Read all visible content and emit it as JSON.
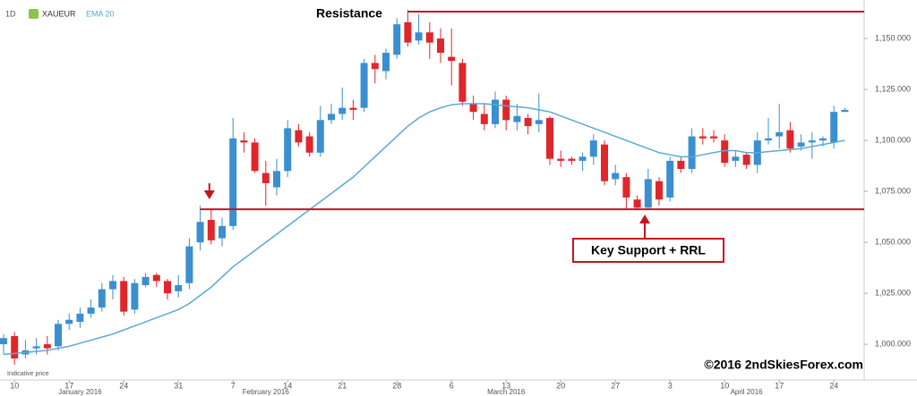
{
  "chart_data": {
    "type": "candlestick",
    "interval": "1D",
    "symbol": "XAUEUR",
    "categories": [
      null,
      "10",
      null,
      null,
      null,
      null,
      "17",
      null,
      null,
      null,
      null,
      "24",
      null,
      null,
      null,
      null,
      "31",
      null,
      null,
      null,
      null,
      "7",
      null,
      null,
      null,
      null,
      "14",
      null,
      null,
      null,
      null,
      "21",
      null,
      null,
      null,
      null,
      "28",
      null,
      null,
      null,
      null,
      "6",
      null,
      null,
      null,
      null,
      "13",
      null,
      null,
      null,
      null,
      "20",
      null,
      null,
      null,
      null,
      "27",
      null,
      null,
      null,
      null,
      "3",
      null,
      null,
      null,
      null,
      "10",
      null,
      null,
      null,
      null,
      "17",
      null,
      null,
      null,
      null,
      "24",
      null
    ],
    "months": [
      "January 2016",
      "February 2016",
      "March 2016",
      "April 2016"
    ],
    "open": [
      1000,
      1004,
      995,
      998,
      1000,
      999,
      1010,
      1011,
      1015,
      1018,
      1027,
      1031,
      1017,
      1029,
      1034,
      1031,
      1026,
      1030,
      1050,
      1061,
      1052,
      1058,
      1100,
      1099,
      1084,
      1077,
      1085,
      1105,
      1102,
      1094,
      1110,
      1113,
      1116,
      1116,
      1138,
      1134,
      1142,
      1158,
      1149,
      1153,
      1150,
      1141,
      1138,
      1118,
      1113,
      1108,
      1120,
      1109,
      1111,
      1108,
      1111,
      1091,
      1091,
      1090,
      1092,
      1098,
      1081,
      1082,
      1071,
      1067,
      1080,
      1072,
      1090,
      1086,
      1102,
      1102,
      1100,
      1090,
      1093,
      1088,
      1100,
      1102,
      1105,
      1097,
      1099,
      1100,
      1099,
      1114
    ],
    "high": [
      1005,
      1006,
      1002,
      1003,
      1004,
      1012,
      1015,
      1018,
      1022,
      1030,
      1034,
      1033,
      1032,
      1035,
      1035,
      1032,
      1034,
      1052,
      1068,
      1066,
      1062,
      1111,
      1104,
      1101,
      1090,
      1091,
      1110,
      1108,
      1104,
      1117,
      1118,
      1126,
      1120,
      1140,
      1142,
      1145,
      1160,
      1164,
      1162,
      1158,
      1155,
      1155,
      1140,
      1122,
      1118,
      1124,
      1122,
      1118,
      1113,
      1123,
      1112,
      1095,
      1092,
      1094,
      1103,
      1100,
      1088,
      1084,
      1073,
      1086,
      1082,
      1092,
      1092,
      1106,
      1106,
      1105,
      1103,
      1095,
      1094,
      1104,
      1111,
      1118,
      1109,
      1103,
      1104,
      1102,
      1117,
      1116
    ],
    "low": [
      995,
      990,
      993,
      995,
      995,
      997,
      1007,
      1008,
      1013,
      1016,
      1022,
      1014,
      1015,
      1028,
      1028,
      1022,
      1023,
      1027,
      1046,
      1049,
      1048,
      1056,
      1094,
      1084,
      1068,
      1073,
      1082,
      1097,
      1092,
      1092,
      1108,
      1110,
      1110,
      1114,
      1128,
      1130,
      1140,
      1146,
      1147,
      1140,
      1138,
      1127,
      1117,
      1110,
      1105,
      1106,
      1105,
      1105,
      1103,
      1104,
      1088,
      1087,
      1088,
      1085,
      1088,
      1078,
      1078,
      1066,
      1066,
      1066,
      1068,
      1070,
      1084,
      1084,
      1098,
      1099,
      1087,
      1087,
      1086,
      1084,
      1098,
      1096,
      1094,
      1095,
      1091,
      1097,
      1096,
      1114
    ],
    "close": [
      1003,
      993,
      997,
      999,
      998,
      1010,
      1012,
      1015,
      1018,
      1027,
      1031,
      1016,
      1030,
      1033,
      1031,
      1025,
      1029,
      1048,
      1060,
      1051,
      1058,
      1101,
      1099,
      1085,
      1079,
      1085,
      1106,
      1099,
      1094,
      1110,
      1113,
      1116,
      1115,
      1138,
      1135,
      1143,
      1157,
      1148,
      1153,
      1148,
      1143,
      1139,
      1119,
      1114,
      1108,
      1120,
      1110,
      1112,
      1107,
      1110,
      1091,
      1090,
      1090,
      1092,
      1100,
      1080,
      1084,
      1072,
      1067,
      1081,
      1071,
      1090,
      1086,
      1102,
      1101,
      1101,
      1089,
      1092,
      1088,
      1100,
      1101,
      1104,
      1096,
      1099,
      1100,
      1101,
      1114,
      1115
    ],
    "up_color": "#3a8fd0",
    "down_color": "#e0262b",
    "ema": {
      "name": "EMA 20",
      "color": "#5aa9d6",
      "values": [
        995,
        995.5,
        996,
        996.5,
        997,
        998,
        999,
        1000.5,
        1002,
        1003.5,
        1005,
        1007,
        1009,
        1011,
        1013,
        1015,
        1017,
        1020,
        1024,
        1028,
        1033,
        1038,
        1042,
        1046,
        1050,
        1054,
        1058,
        1062,
        1066,
        1070,
        1074,
        1078,
        1082,
        1087,
        1092,
        1097,
        1102,
        1107,
        1111,
        1114,
        1116,
        1117.5,
        1118,
        1118,
        1118,
        1117.5,
        1117,
        1116.5,
        1116,
        1115,
        1114,
        1112,
        1110,
        1108,
        1106,
        1104,
        1102,
        1100,
        1098,
        1096,
        1094,
        1093,
        1092,
        1092,
        1093,
        1094,
        1095,
        1095,
        1094,
        1094,
        1094.5,
        1095,
        1095.5,
        1096,
        1097,
        1098,
        1099,
        1100
      ]
    },
    "levels": [
      {
        "label": "Resistance",
        "value": 1163.2,
        "color": "#c8141e"
      },
      {
        "label": "Key Support + RRL",
        "value": 1066.2,
        "color": "#c8141e"
      }
    ],
    "ylim": [
      982.5,
      1168.9
    ],
    "yticks": [
      {
        "value": 1000,
        "label": "1,000.000"
      },
      {
        "value": 1025,
        "label": "1,025.000"
      },
      {
        "value": 1050,
        "label": "1,050.000"
      },
      {
        "value": 1075,
        "label": "1,075.000"
      },
      {
        "value": 1100,
        "label": "1,100.000"
      },
      {
        "value": 1125,
        "label": "1,125.000"
      },
      {
        "value": 1150,
        "label": "1,150.000"
      }
    ],
    "footnote": "Indicative price",
    "copyright": "©2016 2ndSkiesForex.com"
  }
}
